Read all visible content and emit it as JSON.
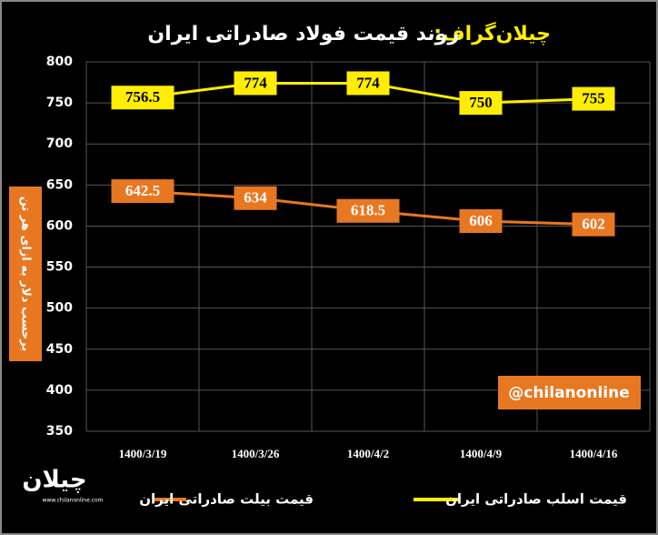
{
  "chart_data": {
    "type": "line",
    "brand": "چیلان‌گراف:",
    "title": "روند قیمت فولاد صادراتی ایران",
    "y_label": "برحسب دلار به ازای هر تن",
    "watermark": "@chilanonline",
    "logo": "چیلان",
    "website": "www.chilanonline.com",
    "categories": [
      "1400/3/19",
      "1400/3/26",
      "1400/4/2",
      "1400/4/9",
      "1400/4/16"
    ],
    "series": [
      {
        "name": "قیمت اسلب صادراتی ایران",
        "color": "#ffee00",
        "values": [
          756.5,
          774,
          774,
          750,
          755
        ]
      },
      {
        "name": "قیمت بیلت صادراتی ایران",
        "color": "#e87722",
        "values": [
          642.5,
          634,
          618.5,
          606,
          602
        ]
      }
    ],
    "ylim": [
      350,
      800
    ],
    "yticks": [
      350,
      400,
      450,
      500,
      550,
      600,
      650,
      700,
      750,
      800
    ],
    "grid": true
  }
}
